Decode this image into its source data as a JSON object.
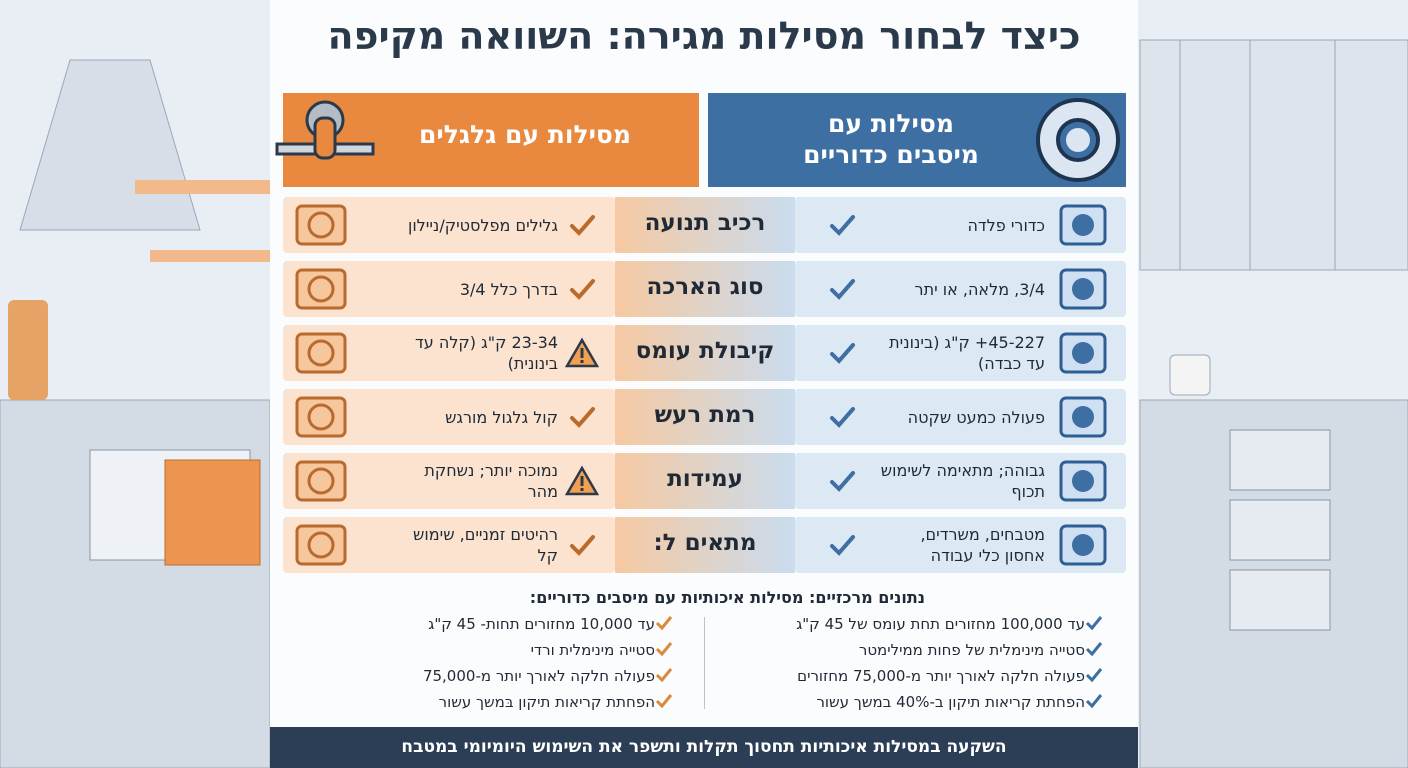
{
  "title": "כיצד לבחור מסילות מגירה: השוואה מקיפה",
  "columns": {
    "ball": [
      "מסילות עם",
      "מיסבים כדוריים"
    ],
    "roller": "מסילות עם גלגלים"
  },
  "rows": [
    {
      "label": "רכיב תנועה",
      "ball": "כדורי פלדה",
      "roller": "גלילים מפלסטיק/ניילון"
    },
    {
      "label": "סוג הארכה",
      "ball": "3/4, מלאה, או יתר",
      "roller": "בדרך כלל 3/4"
    },
    {
      "label": "קיבולת עומס",
      "ball": "45-227+ ק\"ג (בינונית עד כבדה)",
      "roller": "23-34 ק\"ג (קלה עד בינונית)"
    },
    {
      "label": "רמת רעש",
      "ball": "פעולה כמעט שקטה",
      "roller": "קול גלגול מורגש"
    },
    {
      "label": "עמידות",
      "ball": "גבוהה; מתאימה לשימוש תכוף",
      "roller": "נמוכה יותר; נשחקת מהר"
    },
    {
      "label": "מתאים ל:",
      "ball": "מטבחים, משרדים, אחסון כלי עבודה",
      "roller": "רהיטים זמניים, שימוש קל"
    }
  ],
  "key_facts": {
    "title": "נתונים מרכזיים: מסילות איכותיות עם מיסבים כדוריים:",
    "ball": [
      "עד 100,000 מחזורים תחת עומס של 45 ק\"ג",
      "סטייה מינימלית של פחות ממילימטר",
      "פעולה חלקה לאורך יותר מ-75,000 מחזורים",
      "הפחתת קריאות תיקון ב-40% במשך עשור"
    ],
    "roller": [
      "עד 10,000 מחזורים תחות- 45 ק\"ג",
      "סטייה מינימלית ורדי",
      "פעולה חלקה לאורך יותר מ-75,000",
      "הפחתת קריאות תיקון בּמשך עשור"
    ]
  },
  "footer": "השקעה במסילות איכותיות תחסוך תקלות ותשפר את השימוש היומיומי במטבח"
}
